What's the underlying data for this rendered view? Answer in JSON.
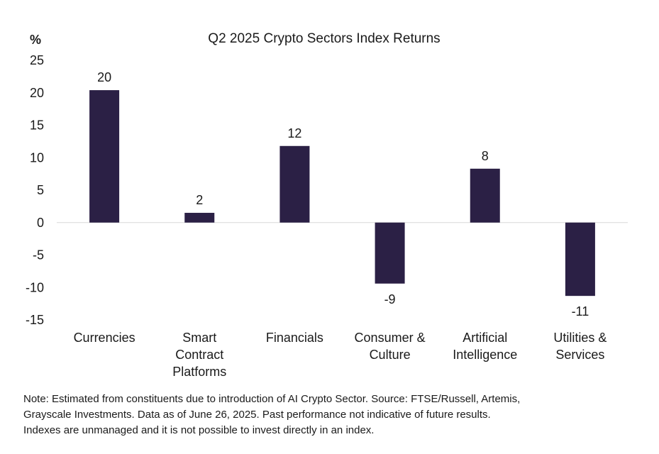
{
  "chart_data": {
    "type": "bar",
    "title": "Q2 2025 Crypto Sectors Index Returns",
    "ylabel": "%",
    "xlabel": "",
    "categories": [
      [
        "Currencies"
      ],
      [
        "Smart",
        "Contract",
        "Platforms"
      ],
      [
        "Financials"
      ],
      [
        "Consumer &",
        "Culture"
      ],
      [
        "Artificial",
        "Intelligence"
      ],
      [
        "Utilities &",
        "Services"
      ]
    ],
    "values": [
      20.4,
      1.5,
      11.8,
      -9.4,
      8.3,
      -11.3
    ],
    "data_labels": [
      "20",
      "2",
      "12",
      "-9",
      "8",
      "-11"
    ],
    "ylim": [
      -15,
      25
    ],
    "yticks": [
      25,
      20,
      15,
      10,
      5,
      0,
      -5,
      -10,
      -15
    ],
    "ytick_labels": [
      "25",
      "20",
      "15",
      "10",
      "5",
      "0",
      "-5",
      "-10",
      "-15"
    ],
    "grid": false,
    "legend": "none",
    "colors": {
      "bar": "#2b2045",
      "zero_line": "#d9d9d9",
      "text": "#1a1a1a"
    }
  },
  "note": {
    "lines": [
      "Note: Estimated from constituents due to introduction of AI Crypto Sector. Source: FTSE/Russell, Artemis,",
      "Grayscale Investments. Data as of June 26, 2025. Past performance not indicative of future results.",
      "Indexes are unmanaged and it is not possible to invest directly in an index."
    ]
  }
}
